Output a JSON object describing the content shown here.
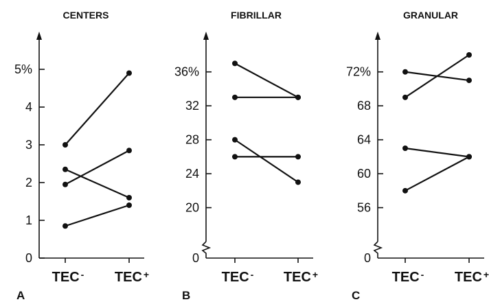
{
  "chart_data": [
    {
      "type": "line",
      "panel_letter": "A",
      "title": "CENTERS",
      "categories": [
        {
          "main": "TEC",
          "sup": "-"
        },
        {
          "main": "TEC",
          "sup": "+"
        }
      ],
      "ylim": [
        0,
        5.2
      ],
      "yticks": [
        {
          "v": 0,
          "label": "0"
        },
        {
          "v": 1,
          "label": "1"
        },
        {
          "v": 2,
          "label": "2"
        },
        {
          "v": 3,
          "label": "3"
        },
        {
          "v": 4,
          "label": "4"
        },
        {
          "v": 5,
          "label": "5%"
        }
      ],
      "axis_break": false,
      "series": [
        {
          "values": [
            3.0,
            4.9
          ]
        },
        {
          "values": [
            2.35,
            1.6
          ]
        },
        {
          "values": [
            1.95,
            2.85
          ]
        },
        {
          "values": [
            0.85,
            1.4
          ]
        }
      ]
    },
    {
      "type": "line",
      "panel_letter": "B",
      "title": "FIBRILLAR",
      "categories": [
        {
          "main": "TEC",
          "sup": "-"
        },
        {
          "main": "TEC",
          "sup": "+"
        }
      ],
      "ylim": [
        16,
        38
      ],
      "yticks": [
        {
          "v": 20,
          "label": "20"
        },
        {
          "v": 24,
          "label": "24"
        },
        {
          "v": 28,
          "label": "28"
        },
        {
          "v": 32,
          "label": "32"
        },
        {
          "v": 36,
          "label": "36%"
        }
      ],
      "axis_break": true,
      "zero_label": "0",
      "series": [
        {
          "values": [
            37,
            33
          ]
        },
        {
          "values": [
            33,
            33
          ]
        },
        {
          "values": [
            28,
            23
          ]
        },
        {
          "values": [
            26,
            26
          ]
        }
      ]
    },
    {
      "type": "line",
      "panel_letter": "C",
      "title": "GRANULAR",
      "categories": [
        {
          "main": "TEC",
          "sup": "-"
        },
        {
          "main": "TEC",
          "sup": "+"
        }
      ],
      "ylim": [
        52,
        74
      ],
      "yticks": [
        {
          "v": 56,
          "label": "56"
        },
        {
          "v": 60,
          "label": "60"
        },
        {
          "v": 64,
          "label": "64"
        },
        {
          "v": 68,
          "label": "68"
        },
        {
          "v": 72,
          "label": "72%"
        }
      ],
      "axis_break": true,
      "zero_label": "0",
      "series": [
        {
          "values": [
            72,
            71
          ]
        },
        {
          "values": [
            69,
            74
          ]
        },
        {
          "values": [
            63,
            62
          ]
        },
        {
          "values": [
            58,
            62
          ]
        }
      ]
    }
  ]
}
